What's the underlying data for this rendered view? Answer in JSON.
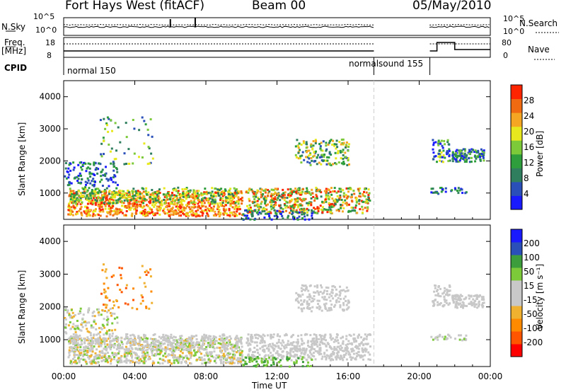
{
  "header": {
    "title": "Fort Hays West (fitACF)",
    "beam": "Beam 00",
    "date": "05/May/2010"
  },
  "status_panels": {
    "nsky_label": "N.Sky",
    "freq_label": "Freq.",
    "freq_unit": "[MHz]",
    "cpid_label": "CPID",
    "nsearch_label": "N.Search",
    "nave_label": "Nave",
    "sky_ticks": [
      "10^5",
      "10^0"
    ],
    "freq_ticks": [
      "18",
      "8"
    ],
    "nave_ticks": [
      "80",
      "0"
    ],
    "cpid_segments": [
      {
        "label": "normal 150",
        "start": 0.0,
        "end": 17.45
      },
      {
        "label": "normalsound 155",
        "start": 17.45,
        "end": 20.6
      }
    ]
  },
  "colors": {
    "power_scale": [
      "#1a1aff",
      "#2a4fb8",
      "#2f7f5f",
      "#2e9d3c",
      "#7cc93a",
      "#e8e81e",
      "#f5a623",
      "#f06a12",
      "#ff2400"
    ],
    "velocity_scale": [
      "#ff0000",
      "#ff5500",
      "#ff8a00",
      "#f0b030",
      "#c8c8c8",
      "#c8c8c8",
      "#7cc93a",
      "#3c9d3c",
      "#2a4fb8",
      "#1a1aff"
    ]
  },
  "chart_data": [
    {
      "type": "heatmap",
      "title": "",
      "xlabel": "",
      "ylabel": "Slant Range [km]",
      "xlim": [
        0,
        24
      ],
      "ylim": [
        180,
        4500
      ],
      "x_ticks": [
        "00:00",
        "04:00",
        "08:00",
        "12:00",
        "16:00",
        "20:00",
        "00:00"
      ],
      "y_ticks": [
        "1000",
        "2000",
        "3000",
        "4000"
      ],
      "colorbar_label": "Power [dB]",
      "colorbar_ticks": [
        "4",
        "8",
        "12",
        "16",
        "20",
        "24",
        "28"
      ],
      "data_gap": [
        17.45,
        20.6
      ]
    },
    {
      "type": "heatmap",
      "title": "",
      "xlabel": "Time UT",
      "ylabel": "Slant Range [km]",
      "xlim": [
        0,
        24
      ],
      "ylim": [
        180,
        4500
      ],
      "x_ticks": [
        "00:00",
        "04:00",
        "08:00",
        "12:00",
        "16:00",
        "20:00",
        "00:00"
      ],
      "y_ticks": [
        "1000",
        "2000",
        "3000",
        "4000"
      ],
      "colorbar_label": "Velocity [m s⁻¹]",
      "colorbar_ticks": [
        "200",
        "100",
        "50",
        "15",
        "-15",
        "-50",
        "-100",
        "-200"
      ],
      "data_gap": [
        17.45,
        20.6
      ]
    }
  ]
}
